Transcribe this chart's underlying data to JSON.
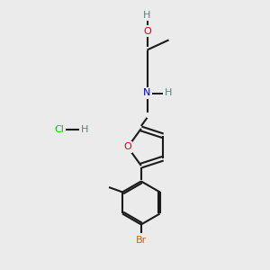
{
  "background_color": "#ebebeb",
  "bond_color": "#1a1a1a",
  "atom_colors": {
    "O": "#dd0000",
    "N": "#0000cc",
    "Br": "#cc6600",
    "Cl": "#00cc00",
    "H_gray": "#5a8080",
    "C": "#1a1a1a"
  },
  "font_size_atom": 8.0,
  "figsize": [
    3.0,
    3.0
  ],
  "dpi": 100,
  "xlim": [
    0,
    10
  ],
  "ylim": [
    0,
    10
  ],
  "hcl_x": 2.2,
  "hcl_y": 5.2
}
